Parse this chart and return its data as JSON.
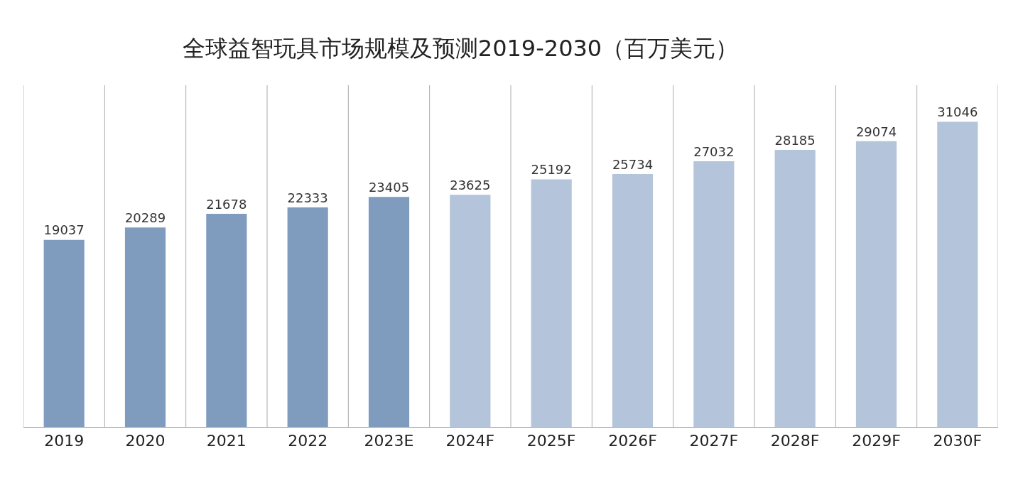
{
  "chart_data": {
    "type": "bar",
    "title": "全球益智玩具市场规模及预测2019-2030（百万美元）",
    "categories": [
      "2019",
      "2020",
      "2021",
      "2022",
      "2023E",
      "2024F",
      "2025F",
      "2026F",
      "2027F",
      "2028F",
      "2029F",
      "2030F"
    ],
    "values": [
      19037,
      20289,
      21678,
      22333,
      23405,
      23625,
      25192,
      25734,
      27032,
      28185,
      29074,
      31046
    ],
    "colors": [
      "#7f9cbf",
      "#7f9cbf",
      "#7f9cbf",
      "#7f9cbf",
      "#7f9cbf",
      "#b4c4da",
      "#b4c4da",
      "#b4c4da",
      "#b4c4da",
      "#b4c4da",
      "#b4c4da",
      "#b4c4da"
    ],
    "data_labels": true,
    "grid": "x"
  }
}
